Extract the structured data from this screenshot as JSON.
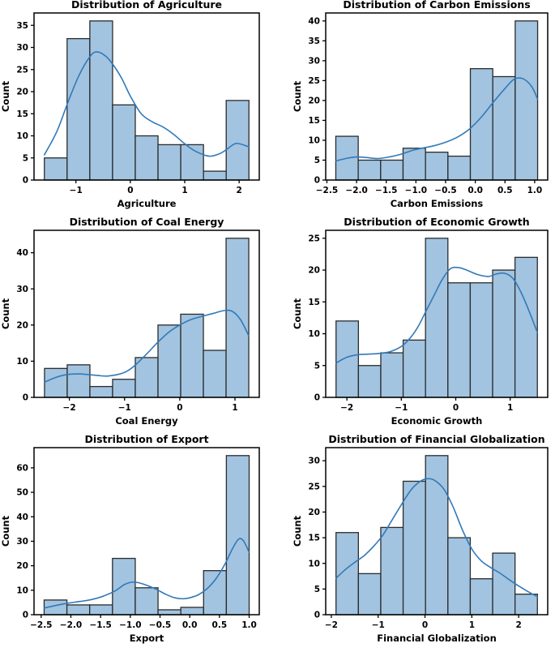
{
  "figure": {
    "background": "#ffffff",
    "description": "Grid of six histograms with KDE overlays"
  },
  "colors": {
    "bar_fill": "#a2c4e0",
    "bar_edge": "#2b2b2b",
    "kde_line": "#3279b8",
    "axis": "#000000",
    "text": "#000000"
  },
  "chart_data": [
    {
      "type": "bar",
      "subtype": "histogram+kde",
      "title": "Distribution of Agriculture",
      "xlabel": "Agriculture",
      "ylabel": "Count",
      "bin_start": -1.58,
      "bin_width": 0.4178,
      "counts": [
        5,
        32,
        36,
        17,
        10,
        8,
        8,
        2,
        18
      ],
      "xlim": [
        -1.77,
        2.37
      ],
      "ylim": [
        0,
        37.8
      ],
      "xtick_vals": [
        -1,
        0,
        1,
        2
      ],
      "xtick_labels": [
        "−1",
        "0",
        "1",
        "2"
      ],
      "ytick_vals": [
        0,
        5,
        10,
        15,
        20,
        25,
        30,
        35
      ],
      "ytick_labels": [
        "0",
        "5",
        "10",
        "15",
        "20",
        "25",
        "30",
        "35"
      ],
      "grid": false,
      "legend": "none",
      "kde": [
        [
          -1.58,
          5.7
        ],
        [
          -1.35,
          11.0
        ],
        [
          -1.15,
          17.5
        ],
        [
          -0.95,
          23.5
        ],
        [
          -0.75,
          27.8
        ],
        [
          -0.62,
          29.0
        ],
        [
          -0.45,
          28.0
        ],
        [
          -0.3,
          25.8
        ],
        [
          -0.15,
          22.8
        ],
        [
          0,
          19.0
        ],
        [
          0.2,
          15.0
        ],
        [
          0.4,
          13.2
        ],
        [
          0.6,
          12.0
        ],
        [
          0.8,
          10.3
        ],
        [
          1.0,
          8.2
        ],
        [
          1.2,
          6.5
        ],
        [
          1.45,
          5.4
        ],
        [
          1.65,
          6.0
        ],
        [
          1.8,
          7.2
        ],
        [
          1.95,
          8.3
        ],
        [
          2.18,
          7.5
        ]
      ]
    },
    {
      "type": "bar",
      "subtype": "histogram+kde",
      "title": "Distribution of Carbon Emissions",
      "xlabel": "Carbon Emissions",
      "ylabel": "Count",
      "bin_start": -2.35,
      "bin_width": 0.3778,
      "counts": [
        11,
        5,
        5,
        8,
        7,
        6,
        28,
        26,
        40
      ],
      "xlim": [
        -2.52,
        1.22
      ],
      "ylim": [
        0,
        42
      ],
      "xtick_vals": [
        -2.5,
        -2.0,
        -1.5,
        -1.0,
        -0.5,
        0.0,
        0.5,
        1.0
      ],
      "xtick_labels": [
        "−2.5",
        "−2.0",
        "−1.5",
        "−1.0",
        "−0.5",
        "0.0",
        "0.5",
        "1.0"
      ],
      "ytick_vals": [
        0,
        5,
        10,
        15,
        20,
        25,
        30,
        35,
        40
      ],
      "ytick_labels": [
        "0",
        "5",
        "10",
        "15",
        "20",
        "25",
        "30",
        "35",
        "40"
      ],
      "grid": false,
      "legend": "none",
      "kde": [
        [
          -2.35,
          4.8
        ],
        [
          -2.15,
          5.5
        ],
        [
          -2.0,
          5.8
        ],
        [
          -1.85,
          5.7
        ],
        [
          -1.65,
          5.4
        ],
        [
          -1.45,
          5.8
        ],
        [
          -1.25,
          6.5
        ],
        [
          -1.05,
          7.5
        ],
        [
          -0.9,
          8.0
        ],
        [
          -0.7,
          8.6
        ],
        [
          -0.5,
          9.5
        ],
        [
          -0.3,
          10.8
        ],
        [
          -0.1,
          12.8
        ],
        [
          0.1,
          15.8
        ],
        [
          0.3,
          19.5
        ],
        [
          0.5,
          23.0
        ],
        [
          0.65,
          25.3
        ],
        [
          0.8,
          25.5
        ],
        [
          0.95,
          23.5
        ],
        [
          1.05,
          20.3
        ]
      ]
    },
    {
      "type": "bar",
      "subtype": "histogram+kde",
      "title": "Distribution of Coal Energy",
      "xlabel": "Coal Energy",
      "ylabel": "Count",
      "bin_start": -2.45,
      "bin_width": 0.4111,
      "counts": [
        8,
        9,
        3,
        5,
        11,
        20,
        23,
        13,
        44
      ],
      "xlim": [
        -2.64,
        1.44
      ],
      "ylim": [
        0,
        46.2
      ],
      "xtick_vals": [
        -2,
        -1,
        0,
        1
      ],
      "xtick_labels": [
        "−2",
        "−1",
        "0",
        "1"
      ],
      "ytick_vals": [
        0,
        10,
        20,
        30,
        40
      ],
      "ytick_labels": [
        "0",
        "10",
        "20",
        "30",
        "40"
      ],
      "grid": false,
      "legend": "none",
      "kde": [
        [
          -2.45,
          4.2
        ],
        [
          -2.25,
          5.5
        ],
        [
          -2.05,
          6.3
        ],
        [
          -1.85,
          6.5
        ],
        [
          -1.65,
          6.3
        ],
        [
          -1.45,
          6.0
        ],
        [
          -1.3,
          5.9
        ],
        [
          -1.1,
          6.4
        ],
        [
          -0.95,
          7.3
        ],
        [
          -0.8,
          9.0
        ],
        [
          -0.6,
          12.0
        ],
        [
          -0.4,
          15.2
        ],
        [
          -0.2,
          18.0
        ],
        [
          0,
          20.0
        ],
        [
          0.2,
          21.5
        ],
        [
          0.4,
          22.4
        ],
        [
          0.6,
          23.2
        ],
        [
          0.8,
          24.0
        ],
        [
          0.95,
          23.8
        ],
        [
          1.1,
          21.5
        ],
        [
          1.25,
          17.0
        ]
      ]
    },
    {
      "type": "bar",
      "subtype": "histogram+kde",
      "title": "Distribution of Economic Growth",
      "xlabel": "Economic Growth",
      "ylabel": "Count",
      "bin_start": -2.2,
      "bin_width": 0.4111,
      "counts": [
        12,
        5,
        7,
        9,
        25,
        18,
        18,
        20,
        22
      ],
      "xlim": [
        -2.39,
        1.69
      ],
      "ylim": [
        0,
        26.25
      ],
      "xtick_vals": [
        -2,
        -1,
        0,
        1
      ],
      "xtick_labels": [
        "−2",
        "−1",
        "0",
        "1"
      ],
      "ytick_vals": [
        0,
        5,
        10,
        15,
        20,
        25
      ],
      "ytick_labels": [
        "0",
        "5",
        "10",
        "15",
        "20",
        "25"
      ],
      "grid": false,
      "legend": "none",
      "kde": [
        [
          -2.2,
          5.4
        ],
        [
          -2.0,
          6.3
        ],
        [
          -1.8,
          6.7
        ],
        [
          -1.6,
          6.8
        ],
        [
          -1.4,
          6.9
        ],
        [
          -1.2,
          7.2
        ],
        [
          -1.0,
          8.0
        ],
        [
          -0.85,
          9.2
        ],
        [
          -0.7,
          11.0
        ],
        [
          -0.55,
          13.5
        ],
        [
          -0.4,
          16.0
        ],
        [
          -0.25,
          18.5
        ],
        [
          -0.1,
          20.2
        ],
        [
          0.05,
          20.4
        ],
        [
          0.2,
          20.0
        ],
        [
          0.4,
          19.3
        ],
        [
          0.6,
          19.0
        ],
        [
          0.75,
          19.4
        ],
        [
          0.9,
          19.5
        ],
        [
          1.05,
          18.7
        ],
        [
          1.2,
          16.5
        ],
        [
          1.35,
          13.5
        ],
        [
          1.5,
          10.2
        ]
      ]
    },
    {
      "type": "bar",
      "subtype": "histogram+kde",
      "title": "Distribution of Export",
      "xlabel": "Export",
      "ylabel": "Count",
      "bin_start": -2.45,
      "bin_width": 0.3833,
      "counts": [
        6,
        4,
        4,
        23,
        11,
        2,
        3,
        18,
        65
      ],
      "xlim": [
        -2.62,
        1.17
      ],
      "ylim": [
        0,
        68.25
      ],
      "xtick_vals": [
        -2.5,
        -2.0,
        -1.5,
        -1.0,
        -0.5,
        0.0,
        0.5,
        1.0
      ],
      "xtick_labels": [
        "−2.5",
        "−2.0",
        "−1.5",
        "−1.0",
        "−0.5",
        "0.0",
        "0.5",
        "1.0"
      ],
      "ytick_vals": [
        0,
        10,
        20,
        30,
        40,
        50,
        60
      ],
      "ytick_labels": [
        "0",
        "10",
        "20",
        "30",
        "40",
        "50",
        "60"
      ],
      "grid": false,
      "legend": "none",
      "kde": [
        [
          -2.45,
          2.7
        ],
        [
          -2.25,
          3.8
        ],
        [
          -2.05,
          4.7
        ],
        [
          -1.85,
          5.4
        ],
        [
          -1.65,
          6.2
        ],
        [
          -1.45,
          7.6
        ],
        [
          -1.25,
          9.8
        ],
        [
          -1.1,
          12.3
        ],
        [
          -0.97,
          13.3
        ],
        [
          -0.85,
          13.0
        ],
        [
          -0.7,
          11.8
        ],
        [
          -0.55,
          10.2
        ],
        [
          -0.4,
          8.3
        ],
        [
          -0.25,
          6.9
        ],
        [
          -0.12,
          6.5
        ],
        [
          0,
          6.9
        ],
        [
          0.15,
          8.2
        ],
        [
          0.3,
          10.8
        ],
        [
          0.45,
          15.0
        ],
        [
          0.6,
          21.0
        ],
        [
          0.72,
          27.0
        ],
        [
          0.82,
          30.8
        ],
        [
          0.9,
          30.3
        ],
        [
          1.0,
          25.5
        ]
      ]
    },
    {
      "type": "bar",
      "subtype": "histogram+kde",
      "title": "Distribution of Financial Globalization",
      "xlabel": "Financial Globalization",
      "ylabel": "Count",
      "bin_start": -1.9,
      "bin_width": 0.4778,
      "counts": [
        16,
        8,
        17,
        26,
        31,
        15,
        7,
        12,
        4
      ],
      "xlim": [
        -2.12,
        2.62
      ],
      "ylim": [
        0,
        32.55
      ],
      "xtick_vals": [
        -2,
        -1,
        0,
        1,
        2
      ],
      "xtick_labels": [
        "−2",
        "−1",
        "0",
        "1",
        "2"
      ],
      "ytick_vals": [
        0,
        5,
        10,
        15,
        20,
        25,
        30
      ],
      "ytick_labels": [
        "0",
        "5",
        "10",
        "15",
        "20",
        "25",
        "30"
      ],
      "grid": false,
      "legend": "none",
      "kde": [
        [
          -1.9,
          7.1
        ],
        [
          -1.7,
          8.8
        ],
        [
          -1.5,
          10.2
        ],
        [
          -1.3,
          11.5
        ],
        [
          -1.1,
          13.3
        ],
        [
          -0.9,
          15.5
        ],
        [
          -0.7,
          18.5
        ],
        [
          -0.5,
          21.5
        ],
        [
          -0.3,
          24.3
        ],
        [
          -0.1,
          26.0
        ],
        [
          0.05,
          26.5
        ],
        [
          0.2,
          26.2
        ],
        [
          0.4,
          24.5
        ],
        [
          0.6,
          21.0
        ],
        [
          0.8,
          16.5
        ],
        [
          1.0,
          12.8
        ],
        [
          1.2,
          10.5
        ],
        [
          1.4,
          9.2
        ],
        [
          1.6,
          8.1
        ],
        [
          1.8,
          6.8
        ],
        [
          2.0,
          5.6
        ],
        [
          2.2,
          4.5
        ],
        [
          2.4,
          3.5
        ]
      ]
    }
  ]
}
